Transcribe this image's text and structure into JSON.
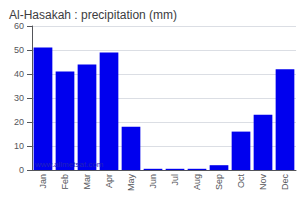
{
  "chart_data": {
    "type": "bar",
    "title": "Al-Hasakah : precipitation (mm)",
    "categories": [
      "Jan",
      "Feb",
      "Mar",
      "Apr",
      "May",
      "Jun",
      "Jul",
      "Aug",
      "Sep",
      "Oct",
      "Nov",
      "Dec"
    ],
    "values": [
      51,
      41,
      44,
      49,
      18,
      0.5,
      0.5,
      0.5,
      2,
      16,
      23,
      42
    ],
    "color": "#0000ee",
    "ylim": [
      0,
      60
    ],
    "yticks": [
      0,
      10,
      20,
      30,
      40,
      50,
      60
    ],
    "grid": true,
    "annotation": "www.allmetsat.com"
  }
}
